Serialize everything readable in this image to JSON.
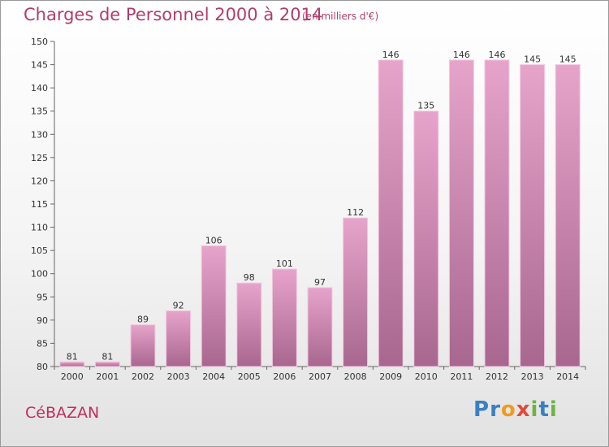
{
  "header": {
    "title": "Charges de Personnel 2000 à 2014",
    "subtitle": "(en milliers d'€)"
  },
  "footer": {
    "commune": "CéBAZAN",
    "brand_letters": [
      {
        "char": "P",
        "color": "#3a7fc2"
      },
      {
        "char": "r",
        "color": "#3a7fc2"
      },
      {
        "char": "o",
        "color": "#f29a1f"
      },
      {
        "char": "x",
        "color": "#e24a3b"
      },
      {
        "char": "i",
        "color": "#6fb43f"
      },
      {
        "char": "t",
        "color": "#3a7fc2"
      },
      {
        "char": "i",
        "color": "#6fb43f"
      }
    ]
  },
  "chart_data": {
    "type": "bar",
    "categories": [
      "2000",
      "2001",
      "2002",
      "2003",
      "2004",
      "2005",
      "2006",
      "2007",
      "2008",
      "2009",
      "2010",
      "2011",
      "2012",
      "2013",
      "2014"
    ],
    "values": [
      81,
      81,
      89,
      92,
      106,
      98,
      101,
      97,
      112,
      146,
      135,
      146,
      146,
      145,
      145
    ],
    "title": "Charges de Personnel 2000 à 2014",
    "subtitle": "(en milliers d'€)",
    "xlabel": "",
    "ylabel": "",
    "ylim": [
      80,
      150
    ],
    "yticks": [
      80,
      85,
      90,
      95,
      100,
      105,
      110,
      115,
      120,
      125,
      130,
      135,
      140,
      145,
      150
    ],
    "grid": false,
    "colors": {
      "bar_top": "#e7a4cb",
      "bar_bottom": "#a8678f",
      "bar_edge": "#f3c9e0",
      "axis": "#666666"
    }
  }
}
